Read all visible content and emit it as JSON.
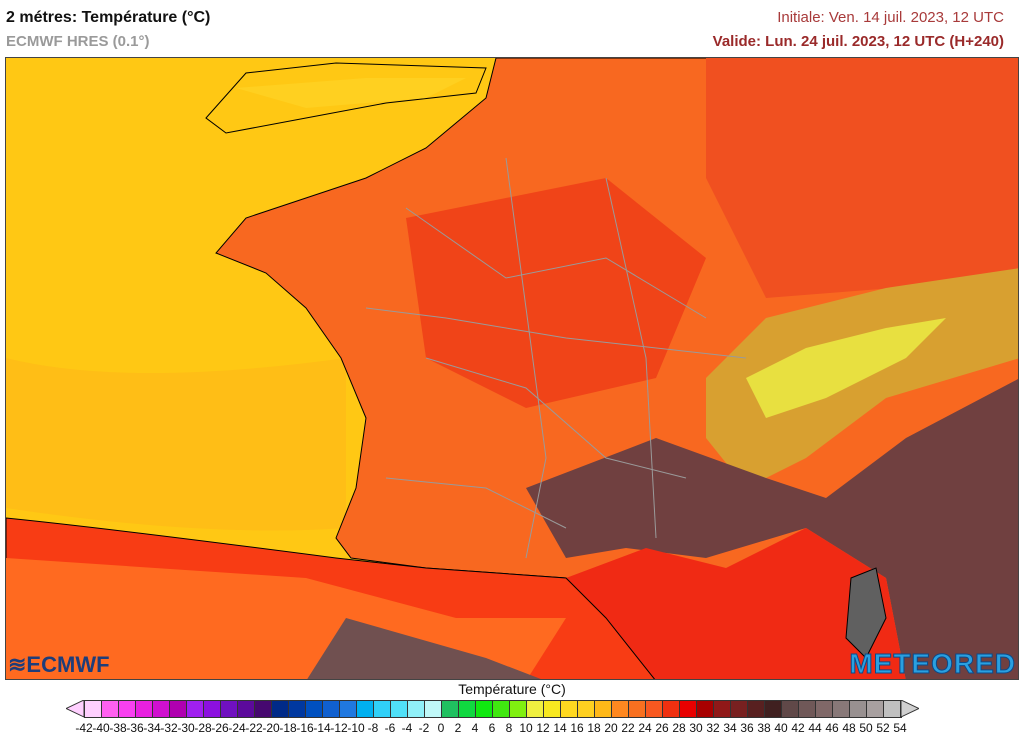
{
  "header": {
    "title": "2 métres: Température (°C)",
    "model": "ECMWF HRES (0.1°)",
    "initial": "Initiale: Ven. 14 juil. 2023, 12 UTC",
    "valid": "Valide: Lun. 24 juil. 2023, 12 UTC (H+240)"
  },
  "legend": {
    "title": "Température (°C)",
    "ticks": [
      "-42",
      "-40",
      "-38",
      "-36",
      "-34",
      "-32",
      "-30",
      "-28",
      "-26",
      "-24",
      "-22",
      "-20",
      "-18",
      "-16",
      "-14",
      "-12",
      "-10",
      "-8",
      "-6",
      "-4",
      "-2",
      "0",
      "2",
      "4",
      "6",
      "8",
      "10",
      "12",
      "14",
      "16",
      "18",
      "20",
      "22",
      "24",
      "26",
      "28",
      "30",
      "32",
      "34",
      "36",
      "38",
      "40",
      "42",
      "44",
      "46",
      "48",
      "50",
      "52",
      "54"
    ],
    "colors": [
      "#ffd0ff",
      "#ff60f0",
      "#f840f0",
      "#e820e0",
      "#d010d0",
      "#b000b0",
      "#a020f0",
      "#8c10e0",
      "#7010c0",
      "#5c0a9c",
      "#460870",
      "#002a88",
      "#0038a0",
      "#0050c0",
      "#1060d0",
      "#2078e0",
      "#00b0f0",
      "#30d0f8",
      "#50e0f8",
      "#90f0f8",
      "#c0f8f8",
      "#20c060",
      "#10d840",
      "#10e810",
      "#40e810",
      "#80f010",
      "#f0f040",
      "#f8e820",
      "#ffd820",
      "#ffd020",
      "#ffb818",
      "#ff8820",
      "#f87020",
      "#f85820",
      "#f03010",
      "#e80000",
      "#a80000",
      "#901818",
      "#782020",
      "#582020",
      "#402020",
      "#604848",
      "#705858",
      "#806868",
      "#887878",
      "#989090",
      "#a8a0a0",
      "#c0c0c0"
    ],
    "under_color": "#ffd0ff",
    "over_color": "#d0d0d0"
  },
  "logos": {
    "left": "ECMWF",
    "right": "METEORED"
  }
}
